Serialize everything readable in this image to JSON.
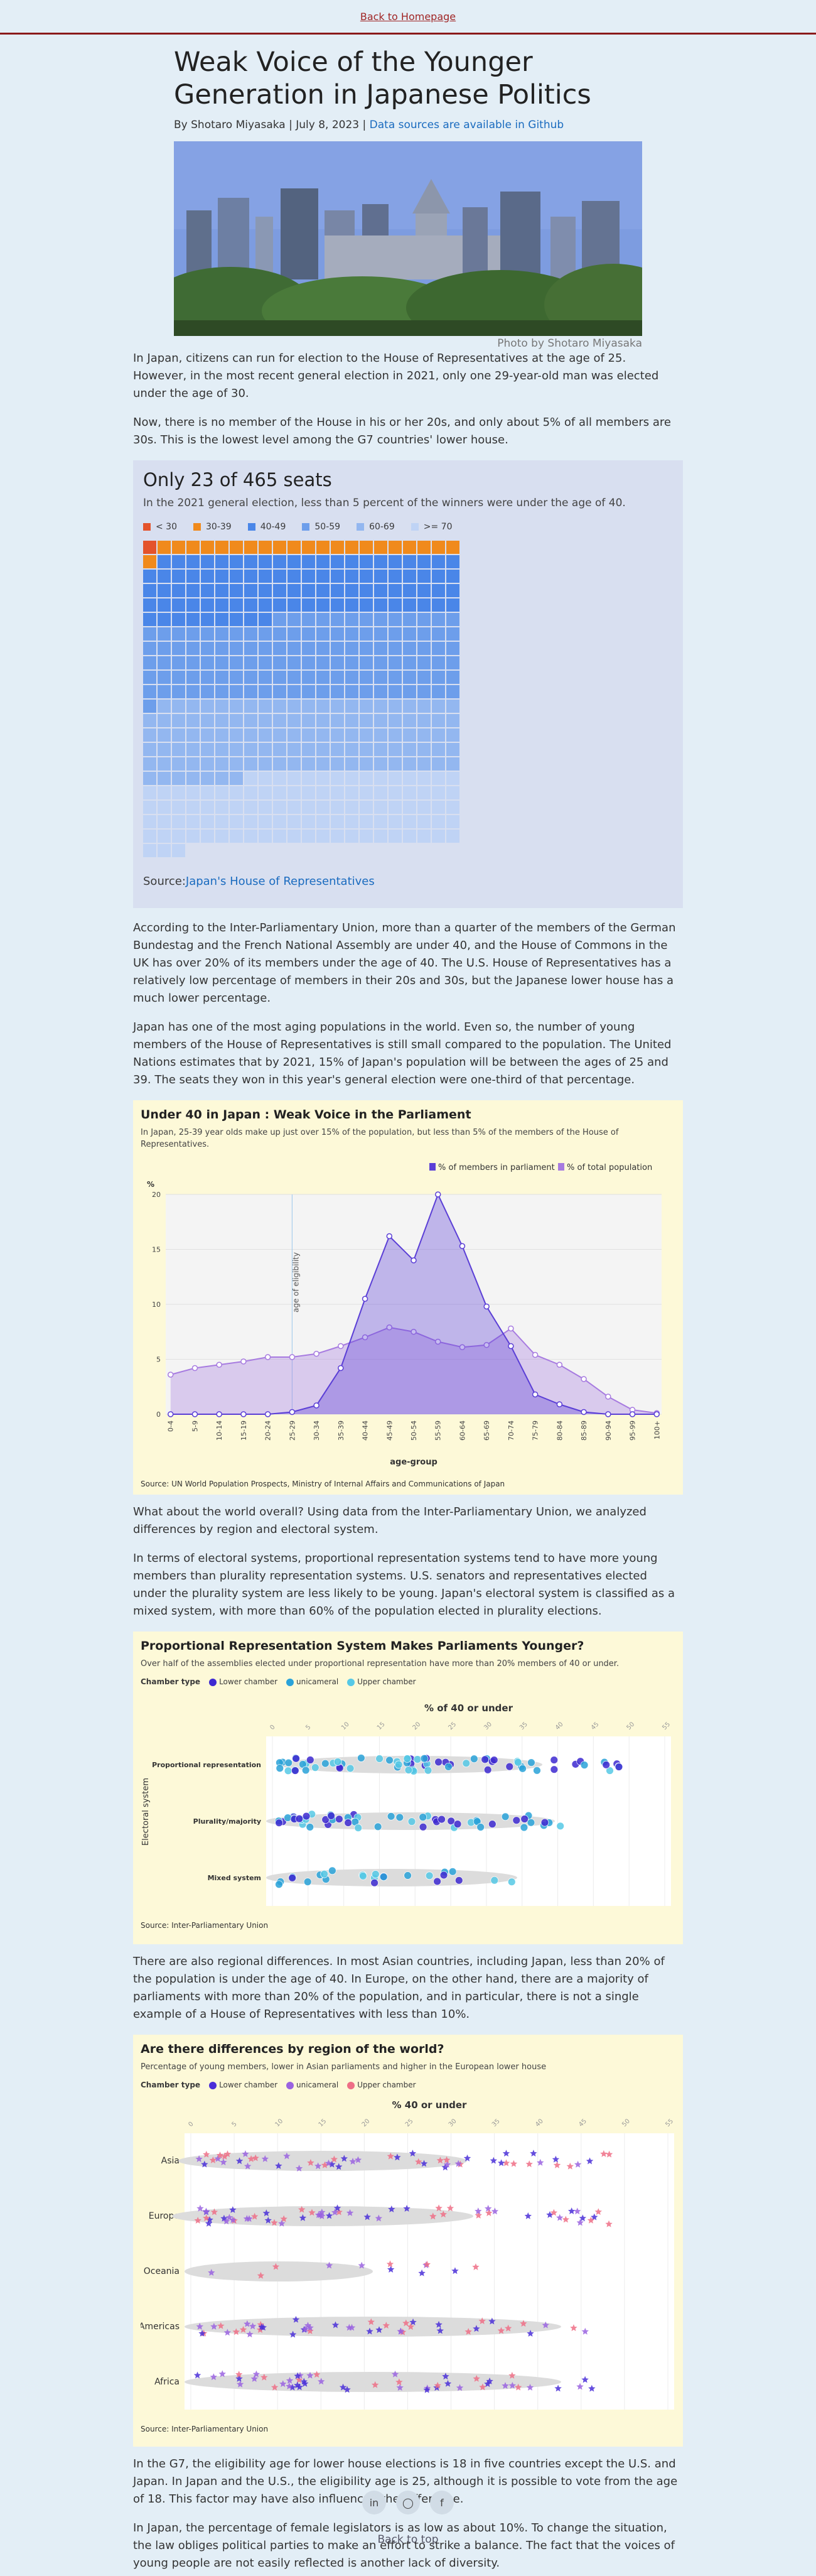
{
  "nav": {
    "back": "Back to Homepage"
  },
  "article": {
    "title": "Weak Voice of the Younger Generation in Japanese Politics",
    "byline": "By Shotaro Miyasaka | July 8, 2023 |",
    "byline_link": "Data sources are available in Github",
    "photo_credit": "Photo by Shotaro Miyasaka",
    "p1": "In Japan, citizens can run for election to the House of Representatives at the age of 25. However, in the most recent general election in 2021, only one 29-year-old man was elected under the age of 30.",
    "p2": "Now, there is no member of the House in his or her 20s, and only about 5% of all members are 30s. This is the lowest level among the G7 countries' lower house.",
    "p3": "According to the Inter-Parliamentary Union, more than a quarter of the members of the German Bundestag and the French National Assembly are under 40, and the House of Commons in the UK has over 20% of its members under the age of 40. The U.S. House of Representatives has a relatively low percentage of members in their 20s and 30s, but the Japanese lower house has a much lower percentage.",
    "p4": "Japan has one of the most aging populations in the world. Even so, the number of young members of the House of Representatives is still small compared to the population. The United Nations estimates that by 2021, 15% of Japan's population will be between the ages of 25 and 39. The seats they won in this year's general election were one-third of that percentage.",
    "p5": "What about the world overall? Using data from the Inter-Parliamentary Union, we analyzed differences by region and electoral system.",
    "p6": "In terms of electoral systems, proportional representation systems tend to have more young members than plurality representation systems. U.S. senators and representatives elected under the plurality system are less likely to be young. Japan's electoral system is classified as a mixed system, with more than 60% of the population elected in plurality elections.",
    "p7": "There are also regional differences. In most Asian countries, including Japan, less than 20% of the population is under the age of 40. In Europe, on the other hand, there are a majority of parliaments with more than 20% of the population, and in particular, there is not a single example of a House of Representatives with less than 10%.",
    "p8": "In the G7, the eligibility age for lower house elections is 18 in five countries except the U.S. and Japan. In Japan and the U.S., the eligibility age is 25, although it is possible to vote from the age of 18. This factor may have also influenced the difference.",
    "p9": "In Japan, the percentage of female legislators is as low as about 10%. To change the situation, the law obliges political parties to make an effort to strike a balance. The fact that the voices of young people are not easily reflected is another lack of diversity."
  },
  "waffle": {
    "title": "Only 23 of 465 seats",
    "subtitle": "In the 2021 general election, less than 5 percent of the winners were under the age of 40.",
    "legend": [
      {
        "label": "< 30",
        "color": "#e4532b"
      },
      {
        "label": "30-39",
        "color": "#f08a1c"
      },
      {
        "label": "40-49",
        "color": "#4a86e8"
      },
      {
        "label": "50-59",
        "color": "#6d9eeb"
      },
      {
        "label": "60-69",
        "color": "#93b7f0"
      },
      {
        "label": ">= 70",
        "color": "#bfd3f5"
      }
    ],
    "counts": [
      1,
      22,
      96,
      124,
      116,
      106
    ],
    "source_prefix": "Source:",
    "source_link": "Japan's House of Representatives"
  },
  "chart1": {
    "title": "Under 40 in Japan : Weak Voice in the Parliament",
    "subtitle": "In Japan, 25-39 year olds make up just over 15% of the population, but less than 5% of the members of the House of Representatives.",
    "legend_parl": "% of members in parliament",
    "legend_pop": "% of total population",
    "ylabel": "%",
    "xlabel": "age-group",
    "annotation": "age of eligibility",
    "source_prefix": "Source:",
    "source_link1": "UN World Population Prospects",
    "source_sep": ",",
    "source_link2": "Ministry of Internal Affairs and Communications of Japan",
    "colors": {
      "parl": "#5b3fd6",
      "pop": "#a77be0"
    }
  },
  "chart_data": [
    {
      "type": "area",
      "title": "Under 40 in Japan : Weak Voice in the Parliament",
      "xlabel": "age-group",
      "ylabel": "%",
      "ylim": [
        0,
        20
      ],
      "categories": [
        "0-4",
        "5-9",
        "10-14",
        "15-19",
        "20-24",
        "25-29",
        "30-34",
        "35-39",
        "40-44",
        "45-49",
        "50-54",
        "55-59",
        "60-64",
        "65-69",
        "70-74",
        "75-79",
        "80-84",
        "85-89",
        "90-94",
        "95-99",
        "100+"
      ],
      "series": [
        {
          "name": "% of members in parliament",
          "values": [
            0,
            0,
            0,
            0,
            0,
            0.2,
            0.8,
            4.2,
            10.5,
            16.2,
            14.0,
            20.0,
            15.3,
            9.8,
            6.2,
            1.8,
            0.9,
            0.2,
            0,
            0,
            0
          ]
        },
        {
          "name": "% of total population",
          "values": [
            3.6,
            4.2,
            4.5,
            4.8,
            5.2,
            5.2,
            5.5,
            6.2,
            7.0,
            7.9,
            7.5,
            6.6,
            6.1,
            6.3,
            7.8,
            5.4,
            4.5,
            3.2,
            1.6,
            0.4,
            0.1
          ]
        }
      ]
    },
    {
      "type": "scatter",
      "title": "Proportional Representation System Makes Parliaments Younger?",
      "xlabel": "% of 40 or under",
      "ylabel": "Electoral system",
      "categories": [
        "Proportional representation",
        "Plurality/majority",
        "Mixed system"
      ],
      "ticks": [
        "0",
        "5",
        "10",
        "15",
        "20",
        "25",
        "30",
        "35",
        "40",
        "45",
        "50",
        "55"
      ]
    },
    {
      "type": "scatter",
      "title": "Are there differences by region of the world?",
      "xlabel": "% 40 or under",
      "categories": [
        "Asia",
        "Europe",
        "Oceania",
        "Americas",
        "Africa"
      ],
      "ticks": [
        "0",
        "5",
        "10",
        "15",
        "20",
        "25",
        "30",
        "35",
        "40",
        "45",
        "50",
        "55"
      ]
    }
  ],
  "chart2": {
    "title": "Proportional Representation System Makes Parliaments Younger?",
    "subtitle": "Over half of the assemblies elected under proportional representation have more than 20% members of 40 or under.",
    "ctype_label": "Chamber type",
    "ctypes": [
      "Lower chamber",
      "unicameral",
      "Upper chamber"
    ],
    "ctype_colors": [
      "#3e2ad1",
      "#2aa3d9",
      "#56c9e6"
    ],
    "axis_title": "% of 40 or under",
    "ylabel": "Electoral system",
    "rows": [
      "Proportional representation",
      "Plurality/majority",
      "Mixed system"
    ],
    "source_prefix": "Source:",
    "source_link": "Inter-Parliamentary Union"
  },
  "chart3": {
    "title": "Are there differences by region of the world?",
    "subtitle": "Percentage of young members, lower in Asian parliaments and higher in the European lower house",
    "ctype_label": "Chamber type",
    "ctypes": [
      "Lower chamber",
      "unicameral",
      "Upper chamber"
    ],
    "ctype_colors": [
      "#4a2fd8",
      "#9a63e0",
      "#ee6f86"
    ],
    "axis_title": "% 40 or under",
    "rows": [
      "Asia",
      "Europe",
      "Oceania",
      "Americas",
      "Africa"
    ],
    "source_prefix": "Source:",
    "source_link": "Inter-Parliamentary Union"
  },
  "footer": {
    "back_top": "Back to top",
    "icons": [
      "linkedin-icon",
      "github-icon",
      "facebook-icon"
    ]
  }
}
